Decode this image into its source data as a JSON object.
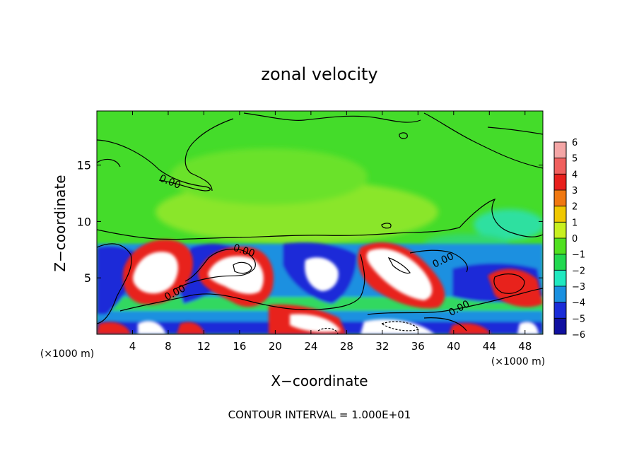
{
  "chart_data": {
    "type": "heatmap",
    "title": "zonal velocity",
    "xlabel": "X−coordinate",
    "ylabel": "Z−coordinate",
    "x_unit_left": "(×1000 m)",
    "x_unit_right": "(×1000 m)",
    "xlim": [
      0,
      50
    ],
    "ylim": [
      0,
      19.8
    ],
    "x_ticks": [
      4,
      8,
      12,
      16,
      20,
      24,
      28,
      32,
      36,
      40,
      44,
      48
    ],
    "x_tick_labels": [
      "4",
      "8",
      "12",
      "16",
      "20",
      "24",
      "28",
      "32",
      "36",
      "40",
      "44",
      "48"
    ],
    "y_ticks": [
      5,
      10,
      15
    ],
    "y_tick_labels": [
      "5",
      "10",
      "15"
    ],
    "colorbar": {
      "min": -6,
      "max": 6,
      "ticks": [
        6,
        5,
        4,
        3,
        2,
        1,
        0,
        -1,
        -2,
        -3,
        -4,
        -5,
        -6
      ],
      "tick_labels": [
        "6",
        "5",
        "4",
        "3",
        "2",
        "1",
        "0",
        "−1",
        "−2",
        "−3",
        "−4",
        "−5",
        "−6"
      ],
      "colors": [
        "#f4a6a6",
        "#f0605e",
        "#e8201c",
        "#f07810",
        "#f0c800",
        "#c8f020",
        "#50e020",
        "#22d850",
        "#20e8c0",
        "#1a90e0",
        "#1a2cd8",
        "#1010a0",
        "#7010a0"
      ]
    },
    "contour_labels": [
      "0.00",
      "0.00",
      "0.00",
      "0.00",
      "0.00"
    ],
    "footer": "CONTOUR INTERVAL = 1.000E+01"
  }
}
